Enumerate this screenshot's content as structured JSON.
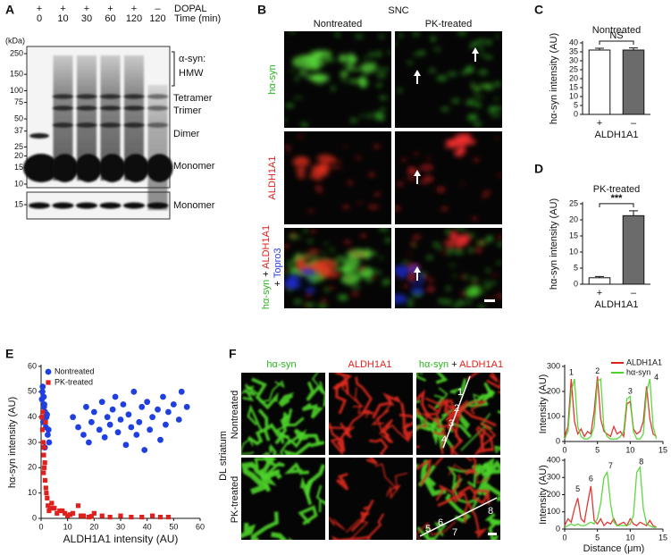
{
  "letters": [
    "A",
    "B",
    "C",
    "D",
    "E",
    "F"
  ],
  "blot": {
    "unit": "(kDa)",
    "markers": [
      250,
      150,
      100,
      75,
      50,
      37,
      25,
      20,
      15,
      10
    ],
    "lower_markers": [
      15
    ],
    "treatment_label": "DOPAL",
    "time_label": "Time (min)",
    "treatment": [
      "+",
      "+",
      "+",
      "+",
      "+",
      "–"
    ],
    "time": [
      0,
      10,
      30,
      60,
      120,
      120
    ],
    "species_label": "α-syn:",
    "bands": [
      "HMW",
      "Tetramer",
      "Trimer",
      "Dimer",
      "Monomer"
    ],
    "lower_band": "Monomer"
  },
  "snc": {
    "title": "SNC",
    "columns": [
      "Nontreated",
      "PK-treated"
    ],
    "rows": [
      [
        "hα-syn"
      ],
      [
        "ALDH1A1"
      ],
      [
        "hα-syn",
        "+",
        "ALDH1A1",
        "+",
        "Topro3"
      ]
    ]
  },
  "striatum": {
    "region": "DL striatum",
    "columns": [
      [
        "hα-syn"
      ],
      [
        "ALDH1A1"
      ],
      [
        "hα-syn",
        "+",
        "ALDH1A1"
      ]
    ],
    "rows": [
      "Nontreated",
      "PK-treated"
    ],
    "line_points": [
      [
        "1",
        "2",
        "3",
        "4"
      ],
      [
        "5",
        "6",
        "7",
        "8"
      ]
    ]
  },
  "chart_data": [
    {
      "type": "bar",
      "title": "Nontreated",
      "categories": [
        "+",
        "–"
      ],
      "values": [
        36,
        36
      ],
      "errors": [
        1,
        1.2
      ],
      "colors": [
        "#ffffff",
        "#6b6b6b"
      ],
      "ylim": [
        0,
        40
      ],
      "yticks": [
        0,
        5,
        10,
        15,
        20,
        25,
        30,
        35,
        40
      ],
      "ylabel": "hα-syn intensity (AU)",
      "xlabel": "ALDH1A1",
      "annotation": "NS"
    },
    {
      "type": "bar",
      "title": "PK-treated",
      "categories": [
        "+",
        "–"
      ],
      "values": [
        2,
        21.3
      ],
      "errors": [
        0.4,
        1.5
      ],
      "colors": [
        "#ffffff",
        "#6b6b6b"
      ],
      "ylim": [
        0,
        25
      ],
      "yticks": [
        0,
        5,
        10,
        15,
        20,
        25
      ],
      "ylabel": "hα-syn intensity (AU)",
      "xlabel": "ALDH1A1",
      "annotation": "***"
    },
    {
      "type": "scatter",
      "xlabel": "ALDH1A1 intensity (AU)",
      "ylabel": "hα-syn intensity (AU)",
      "xlim": [
        0,
        60
      ],
      "ylim": [
        0,
        60
      ],
      "xticks": [
        0,
        10,
        20,
        30,
        40,
        50,
        60
      ],
      "yticks": [
        0,
        10,
        20,
        30,
        40,
        50,
        60
      ],
      "legend": "upper left",
      "series": [
        {
          "name": "Nontreated",
          "color": "#1f3fe0",
          "marker": "circle",
          "x": [
            0.5,
            1,
            1.2,
            1.5,
            2,
            0.8,
            1.8,
            2.5,
            3,
            0.3,
            1.1,
            2.2,
            1.4,
            0.6,
            2.8,
            12,
            14,
            16,
            17,
            18,
            19,
            20,
            22,
            23,
            24,
            25,
            26,
            27,
            28,
            29,
            30,
            31,
            32,
            33,
            34,
            35,
            36,
            37,
            38,
            39,
            40,
            41,
            42,
            44,
            45,
            46,
            47,
            48,
            50,
            52,
            53,
            55
          ],
          "y": [
            50,
            48,
            45,
            42,
            40,
            38,
            36,
            33,
            30,
            47,
            44,
            41,
            28,
            52,
            35,
            40,
            36,
            33,
            44,
            30,
            38,
            42,
            35,
            46,
            32,
            40,
            37,
            43,
            48,
            34,
            39,
            45,
            29,
            41,
            36,
            50,
            33,
            38,
            44,
            27,
            46,
            35,
            40,
            43,
            31,
            48,
            37,
            42,
            45,
            39,
            50,
            44
          ]
        },
        {
          "name": "PK-treated",
          "color": "#e0201c",
          "marker": "square",
          "x": [
            0.3,
            0.5,
            0.8,
            1,
            1.2,
            1.5,
            1.8,
            2,
            2.3,
            0.6,
            1.1,
            1.4,
            2.6,
            3,
            0.9,
            1.7,
            4,
            5,
            6,
            8,
            10,
            12,
            14,
            16,
            18,
            20,
            23,
            26,
            30,
            34,
            38,
            42,
            45,
            48,
            3.5,
            7,
            9,
            11,
            15,
            19
          ],
          "y": [
            40,
            35,
            30,
            25,
            20,
            15,
            12,
            10,
            8,
            42,
            28,
            22,
            5,
            3,
            18,
            38,
            6,
            4,
            2,
            3,
            1,
            2,
            5,
            1,
            0.5,
            2,
            1,
            0.5,
            1,
            0.5,
            0.5,
            1,
            0.5,
            0.5,
            4,
            3,
            2,
            1.5,
            1,
            0.8
          ]
        }
      ]
    },
    {
      "type": "line",
      "ylabel": "Intensity (AU)",
      "xlim": [
        0,
        15
      ],
      "ylim": [
        0,
        300
      ],
      "xticks": [
        0,
        5,
        10,
        15
      ],
      "yticks": [
        0,
        100,
        200,
        300
      ],
      "x": [
        0,
        0.5,
        1,
        1.5,
        2,
        2.5,
        3,
        3.5,
        4,
        4.5,
        5,
        5.5,
        6,
        6.5,
        7,
        7.5,
        8,
        8.5,
        9,
        9.5,
        10,
        10.5,
        11,
        11.5,
        12,
        12.5,
        13,
        13.5,
        14
      ],
      "series": [
        {
          "name": "ALDH1A1",
          "color": "#e0201c",
          "values": [
            20,
            60,
            250,
            80,
            30,
            50,
            20,
            40,
            30,
            120,
            260,
            90,
            40,
            30,
            20,
            60,
            30,
            40,
            20,
            150,
            160,
            50,
            30,
            40,
            80,
            220,
            90,
            30,
            20
          ]
        },
        {
          "name": "hα-syn",
          "color": "#4cd42a",
          "values": [
            10,
            40,
            200,
            250,
            60,
            20,
            10,
            10,
            20,
            60,
            240,
            250,
            50,
            20,
            10,
            10,
            10,
            20,
            40,
            170,
            180,
            40,
            10,
            10,
            30,
            200,
            250,
            60,
            10
          ]
        }
      ],
      "annotations": [
        {
          "text": "1",
          "x": 1,
          "y": 275
        },
        {
          "text": "2",
          "x": 5,
          "y": 280
        },
        {
          "text": "3",
          "x": 10,
          "y": 200
        },
        {
          "text": "4",
          "x": 14,
          "y": 255
        }
      ]
    },
    {
      "type": "line",
      "ylabel": "Intensity (AU)",
      "xlabel": "Distance (μm)",
      "xlim": [
        0,
        15
      ],
      "ylim": [
        0,
        400
      ],
      "xticks": [
        0,
        5,
        10,
        15
      ],
      "yticks": [
        0,
        100,
        200,
        300,
        400
      ],
      "x": [
        0,
        0.5,
        1,
        1.5,
        2,
        2.5,
        3,
        3.5,
        4,
        4.5,
        5,
        5.5,
        6,
        6.5,
        7,
        7.5,
        8,
        8.5,
        9,
        9.5,
        10,
        10.5,
        11,
        11.5,
        12,
        12.5,
        13,
        13.5,
        14
      ],
      "series": [
        {
          "color": "#e0201c",
          "values": [
            20,
            60,
            40,
            120,
            180,
            60,
            40,
            150,
            250,
            50,
            30,
            60,
            20,
            40,
            30,
            60,
            20,
            30,
            40,
            20,
            60,
            30,
            20,
            40,
            30,
            20,
            50,
            20,
            10
          ]
        },
        {
          "color": "#4cd42a",
          "values": [
            10,
            20,
            30,
            20,
            30,
            20,
            20,
            30,
            40,
            30,
            60,
            150,
            300,
            330,
            150,
            40,
            20,
            20,
            20,
            20,
            30,
            80,
            330,
            360,
            120,
            30,
            20,
            10,
            10
          ]
        }
      ],
      "annotations": [
        {
          "text": "5",
          "x": 2,
          "y": 230
        },
        {
          "text": "6",
          "x": 4,
          "y": 290
        },
        {
          "text": "7",
          "x": 7,
          "y": 365
        },
        {
          "text": "8",
          "x": 11.7,
          "y": 390
        }
      ]
    }
  ]
}
